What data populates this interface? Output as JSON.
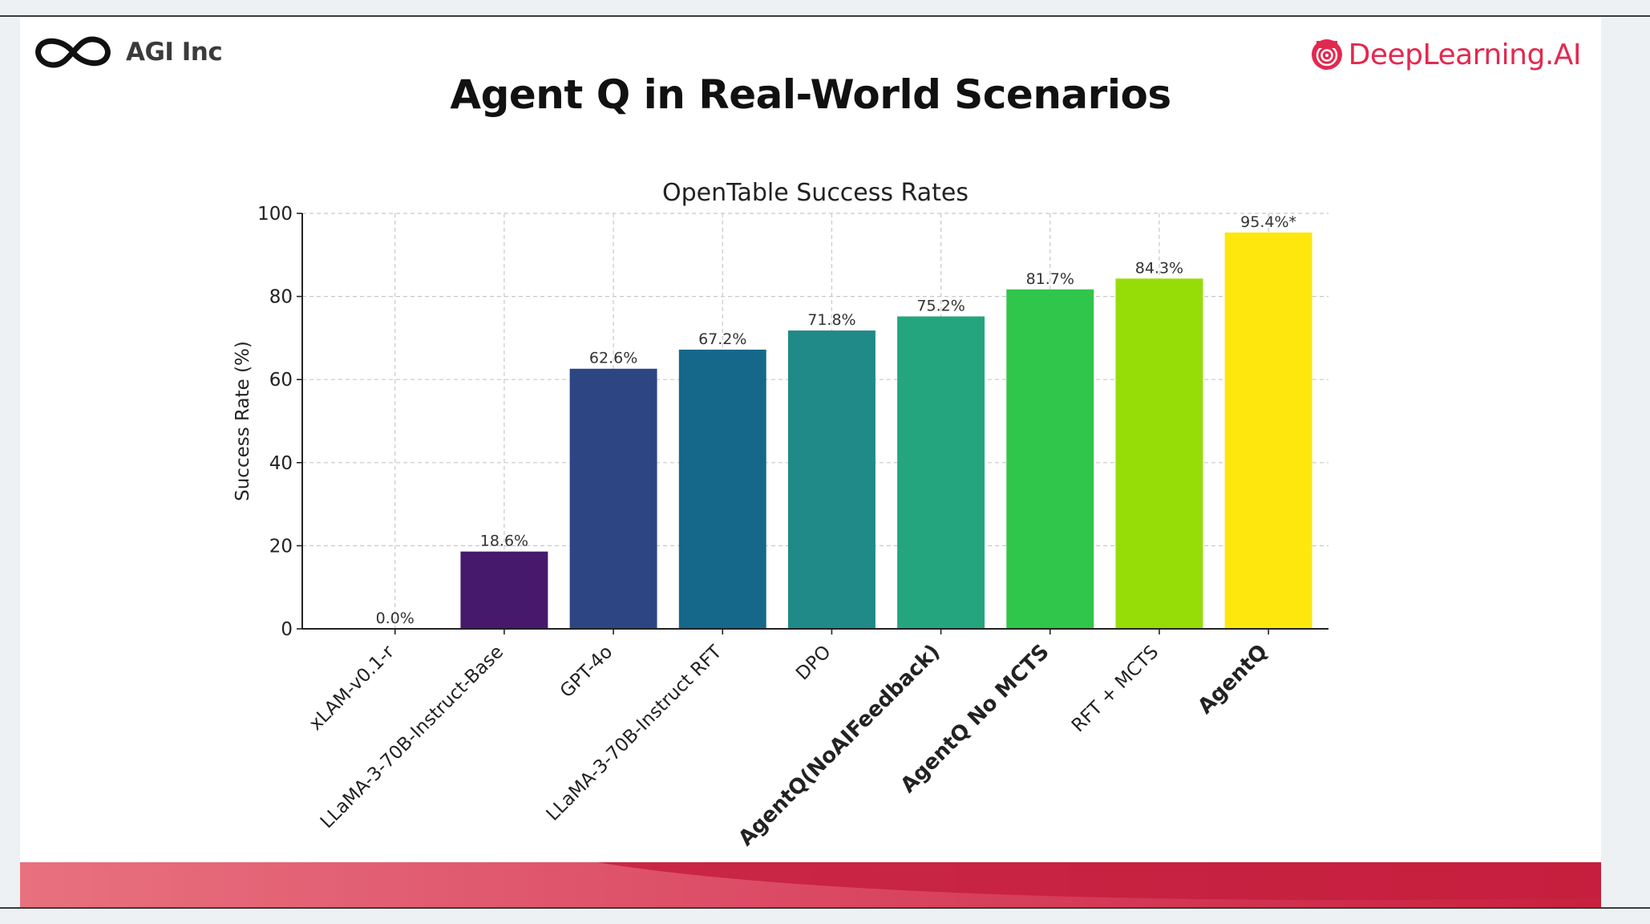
{
  "branding": {
    "left_logo_text": "AGI Inc",
    "left_logo_icon": "infinity-icon",
    "right_logo_text": "DeepLearning.AI",
    "right_logo_icon": "deeplearning-spiral-icon"
  },
  "slide_title": "Agent Q in Real-World Scenarios",
  "colors": {
    "brand_red": "#e2294f",
    "banner_light": "#e8687a",
    "banner_dark": "#c8203f"
  },
  "chart_data": {
    "type": "bar",
    "title": "OpenTable Success Rates",
    "xlabel": "",
    "ylabel": "Success Rate (%)",
    "ylim": [
      0,
      100
    ],
    "yticks": [
      0,
      20,
      40,
      60,
      80,
      100
    ],
    "grid": true,
    "categories": [
      "xLAM-v0.1-r",
      "LLaMA-3-70B-Instruct-Base",
      "GPT-4o",
      "LLaMA-3-70B-Instruct RFT",
      "DPO",
      "AgentQ(NoAIFeedback)",
      "AgentQ No MCTS",
      "RFT + MCTS",
      "AgentQ"
    ],
    "values": [
      0.0,
      18.6,
      62.6,
      67.2,
      71.8,
      75.2,
      81.7,
      84.3,
      95.4
    ],
    "value_labels": [
      "0.0%",
      "18.6%",
      "62.6%",
      "67.2%",
      "71.8%",
      "75.2%",
      "81.7%",
      "84.3%",
      "95.4%*"
    ],
    "bold_categories": [
      "AgentQ(NoAIFeedback)",
      "AgentQ No MCTS",
      "AgentQ"
    ],
    "bar_colors": [
      "#440154",
      "#46196c",
      "#2d4582",
      "#16688a",
      "#1f8a87",
      "#25a57e",
      "#30c54b",
      "#96dd08",
      "#fde70c"
    ]
  }
}
